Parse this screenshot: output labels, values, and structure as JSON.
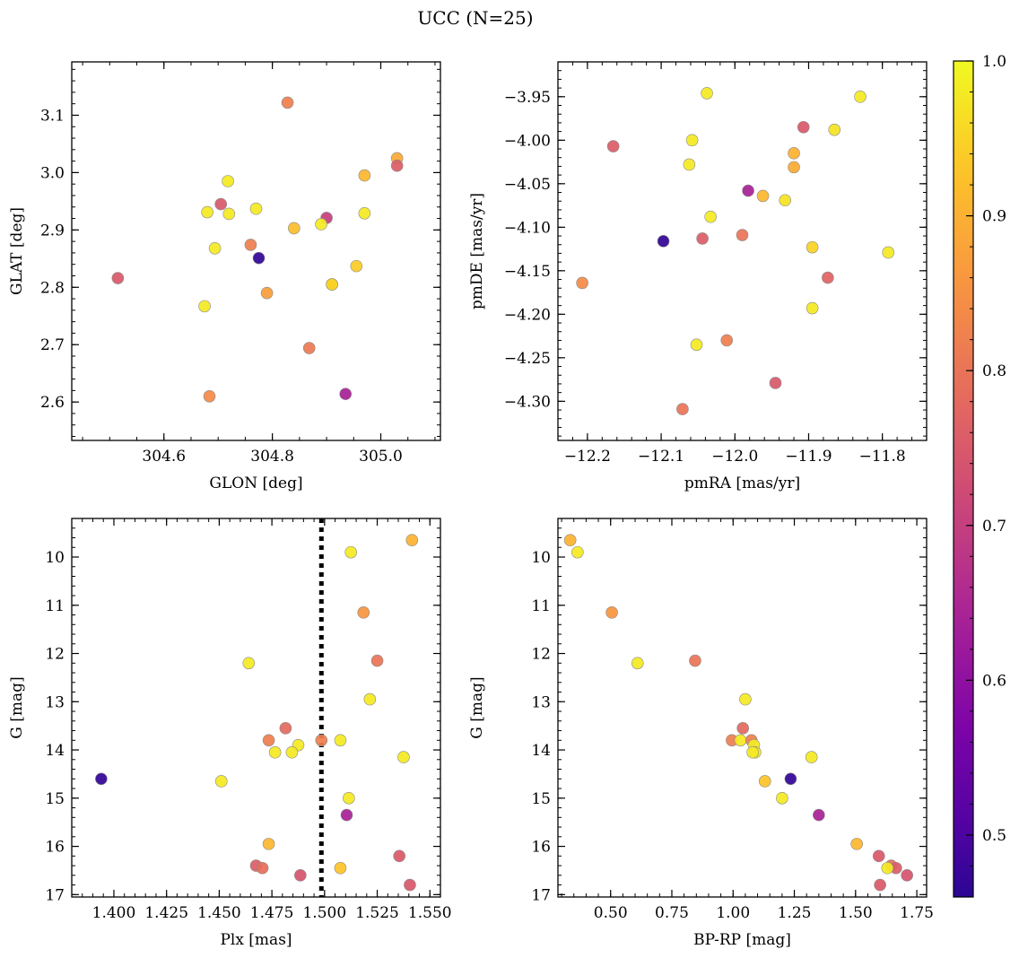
{
  "figure": {
    "title": "UCC (N=25)"
  },
  "colorbar": {
    "colormap": "plasma",
    "min": 0.46,
    "max": 1.0,
    "ticks": [
      "0.5",
      "0.6",
      "0.7",
      "0.8",
      "0.9",
      "1.0"
    ]
  },
  "chart_data": [
    {
      "type": "scatter",
      "title": "",
      "xlabel": "GLON [deg]",
      "ylabel": "GLAT [deg]",
      "xlim": [
        304.43,
        305.11
      ],
      "ylim": [
        2.533,
        3.193
      ],
      "y_inverted": false,
      "grid": false,
      "xticks": [
        "304.6",
        "304.8",
        "305.0"
      ],
      "yticks": [
        "2.6",
        "2.7",
        "2.8",
        "2.9",
        "3.0",
        "3.1"
      ],
      "x": [
        304.515,
        304.828,
        305.03,
        305.03,
        304.97,
        304.718,
        304.68,
        304.72,
        304.705,
        304.77,
        304.84,
        304.9,
        304.89,
        304.97,
        304.694,
        304.76,
        304.775,
        304.955,
        304.91,
        304.79,
        304.675,
        304.868,
        304.684,
        304.935,
        304.91
      ],
      "y": [
        2.816,
        3.122,
        3.025,
        3.012,
        2.995,
        2.985,
        2.931,
        2.928,
        2.945,
        2.937,
        2.903,
        2.921,
        2.91,
        2.929,
        2.868,
        2.874,
        2.851,
        2.837,
        2.805,
        2.79,
        2.767,
        2.694,
        2.61,
        2.614,
        2.805
      ],
      "color": [
        0.75,
        0.82,
        0.89,
        0.76,
        0.91,
        0.98,
        0.98,
        0.98,
        0.75,
        0.98,
        0.92,
        0.7,
        0.98,
        0.98,
        0.98,
        0.82,
        0.47,
        0.94,
        0.92,
        0.87,
        0.98,
        0.81,
        0.84,
        0.64,
        0.95
      ]
    },
    {
      "type": "scatter",
      "title": "",
      "xlabel": "pmRA [mas/yr]",
      "ylabel": "pmDE [mas/yr]",
      "xlim": [
        -12.24,
        -11.74
      ],
      "ylim": [
        -4.345,
        -3.91
      ],
      "y_inverted": false,
      "grid": false,
      "xticks": [
        "−12.2",
        "−12.1",
        "−12.0",
        "−11.9",
        "−11.8"
      ],
      "yticks": [
        "−4.30",
        "−4.25",
        "−4.20",
        "−4.15",
        "−4.10",
        "−4.05",
        "−4.00",
        "−3.95"
      ],
      "x": [
        -12.038,
        -11.83,
        -11.865,
        -12.165,
        -11.907,
        -12.058,
        -12.062,
        -11.92,
        -11.92,
        -11.982,
        -11.962,
        -11.932,
        -12.033,
        -12.097,
        -12.044,
        -11.99,
        -11.895,
        -11.792,
        -11.874,
        -11.895,
        -12.207,
        -12.052,
        -12.011,
        -11.945,
        -12.071
      ],
      "y": [
        -3.946,
        -3.95,
        -3.988,
        -4.007,
        -3.985,
        -4.0,
        -4.028,
        -4.015,
        -4.031,
        -4.058,
        -4.064,
        -4.069,
        -4.088,
        -4.116,
        -4.113,
        -4.109,
        -4.123,
        -4.129,
        -4.158,
        -4.193,
        -4.164,
        -4.235,
        -4.23,
        -4.279,
        -4.309
      ],
      "color": [
        0.98,
        0.98,
        0.97,
        0.76,
        0.75,
        0.98,
        0.98,
        0.9,
        0.89,
        0.64,
        0.91,
        0.97,
        0.98,
        0.47,
        0.76,
        0.8,
        0.95,
        0.98,
        0.77,
        0.98,
        0.84,
        0.98,
        0.82,
        0.75,
        0.8
      ]
    },
    {
      "type": "scatter",
      "title": "",
      "xlabel": "Plx [mas]",
      "ylabel": "G [mag]",
      "xlim": [
        1.38,
        1.555
      ],
      "ylim": [
        17.05,
        9.2
      ],
      "y_inverted": true,
      "grid": false,
      "xticks": [
        "1.400",
        "1.425",
        "1.450",
        "1.475",
        "1.500",
        "1.525",
        "1.550"
      ],
      "yticks": [
        "10",
        "11",
        "12",
        "13",
        "14",
        "15",
        "16",
        "17"
      ],
      "vline": {
        "x": 1.4985,
        "style": "dotted"
      },
      "x": [
        1.5415,
        1.5125,
        1.5185,
        1.525,
        1.464,
        1.5215,
        1.4815,
        1.4735,
        1.4765,
        1.4875,
        1.4845,
        1.4985,
        1.5075,
        1.5375,
        1.394,
        1.451,
        1.5115,
        1.5105,
        1.4735,
        1.5355,
        1.4675,
        1.4705,
        1.4885,
        1.5075,
        1.5405
      ],
      "y": [
        9.65,
        9.9,
        11.15,
        12.15,
        12.2,
        12.95,
        13.55,
        13.8,
        14.05,
        13.9,
        14.05,
        13.8,
        13.8,
        14.15,
        14.6,
        14.65,
        15.0,
        15.35,
        15.95,
        16.2,
        16.4,
        16.45,
        16.6,
        16.45,
        16.8
      ],
      "color": [
        0.9,
        0.98,
        0.86,
        0.8,
        0.98,
        0.98,
        0.78,
        0.82,
        0.98,
        0.98,
        0.98,
        0.82,
        0.98,
        0.98,
        0.47,
        0.98,
        0.98,
        0.64,
        0.91,
        0.75,
        0.76,
        0.79,
        0.74,
        0.93,
        0.75
      ]
    },
    {
      "type": "scatter",
      "title": "",
      "xlabel": "BP-RP [mag]",
      "ylabel": "G [mag]",
      "xlim": [
        0.285,
        1.79
      ],
      "ylim": [
        17.05,
        9.2
      ],
      "y_inverted": true,
      "grid": false,
      "xticks": [
        "0.50",
        "0.75",
        "1.00",
        "1.25",
        "1.50",
        "1.75"
      ],
      "yticks": [
        "10",
        "11",
        "12",
        "13",
        "14",
        "15",
        "16",
        "17"
      ],
      "x": [
        0.335,
        0.365,
        0.505,
        0.61,
        0.845,
        1.05,
        1.04,
        0.995,
        1.03,
        1.075,
        1.085,
        1.09,
        1.08,
        1.32,
        1.235,
        1.13,
        1.2,
        1.35,
        1.505,
        1.595,
        1.645,
        1.665,
        1.71,
        1.63,
        1.6
      ],
      "y": [
        9.65,
        9.9,
        11.15,
        12.2,
        12.15,
        12.95,
        13.55,
        13.8,
        13.8,
        13.8,
        13.9,
        14.05,
        14.05,
        14.15,
        14.6,
        14.65,
        15.0,
        15.35,
        15.95,
        16.2,
        16.4,
        16.45,
        16.6,
        16.45,
        16.8
      ],
      "color": [
        0.9,
        0.98,
        0.86,
        0.98,
        0.8,
        0.98,
        0.78,
        0.82,
        0.98,
        0.82,
        0.98,
        0.98,
        0.98,
        0.98,
        0.47,
        0.93,
        0.98,
        0.64,
        0.91,
        0.75,
        0.79,
        0.76,
        0.74,
        0.98,
        0.75
      ]
    }
  ]
}
